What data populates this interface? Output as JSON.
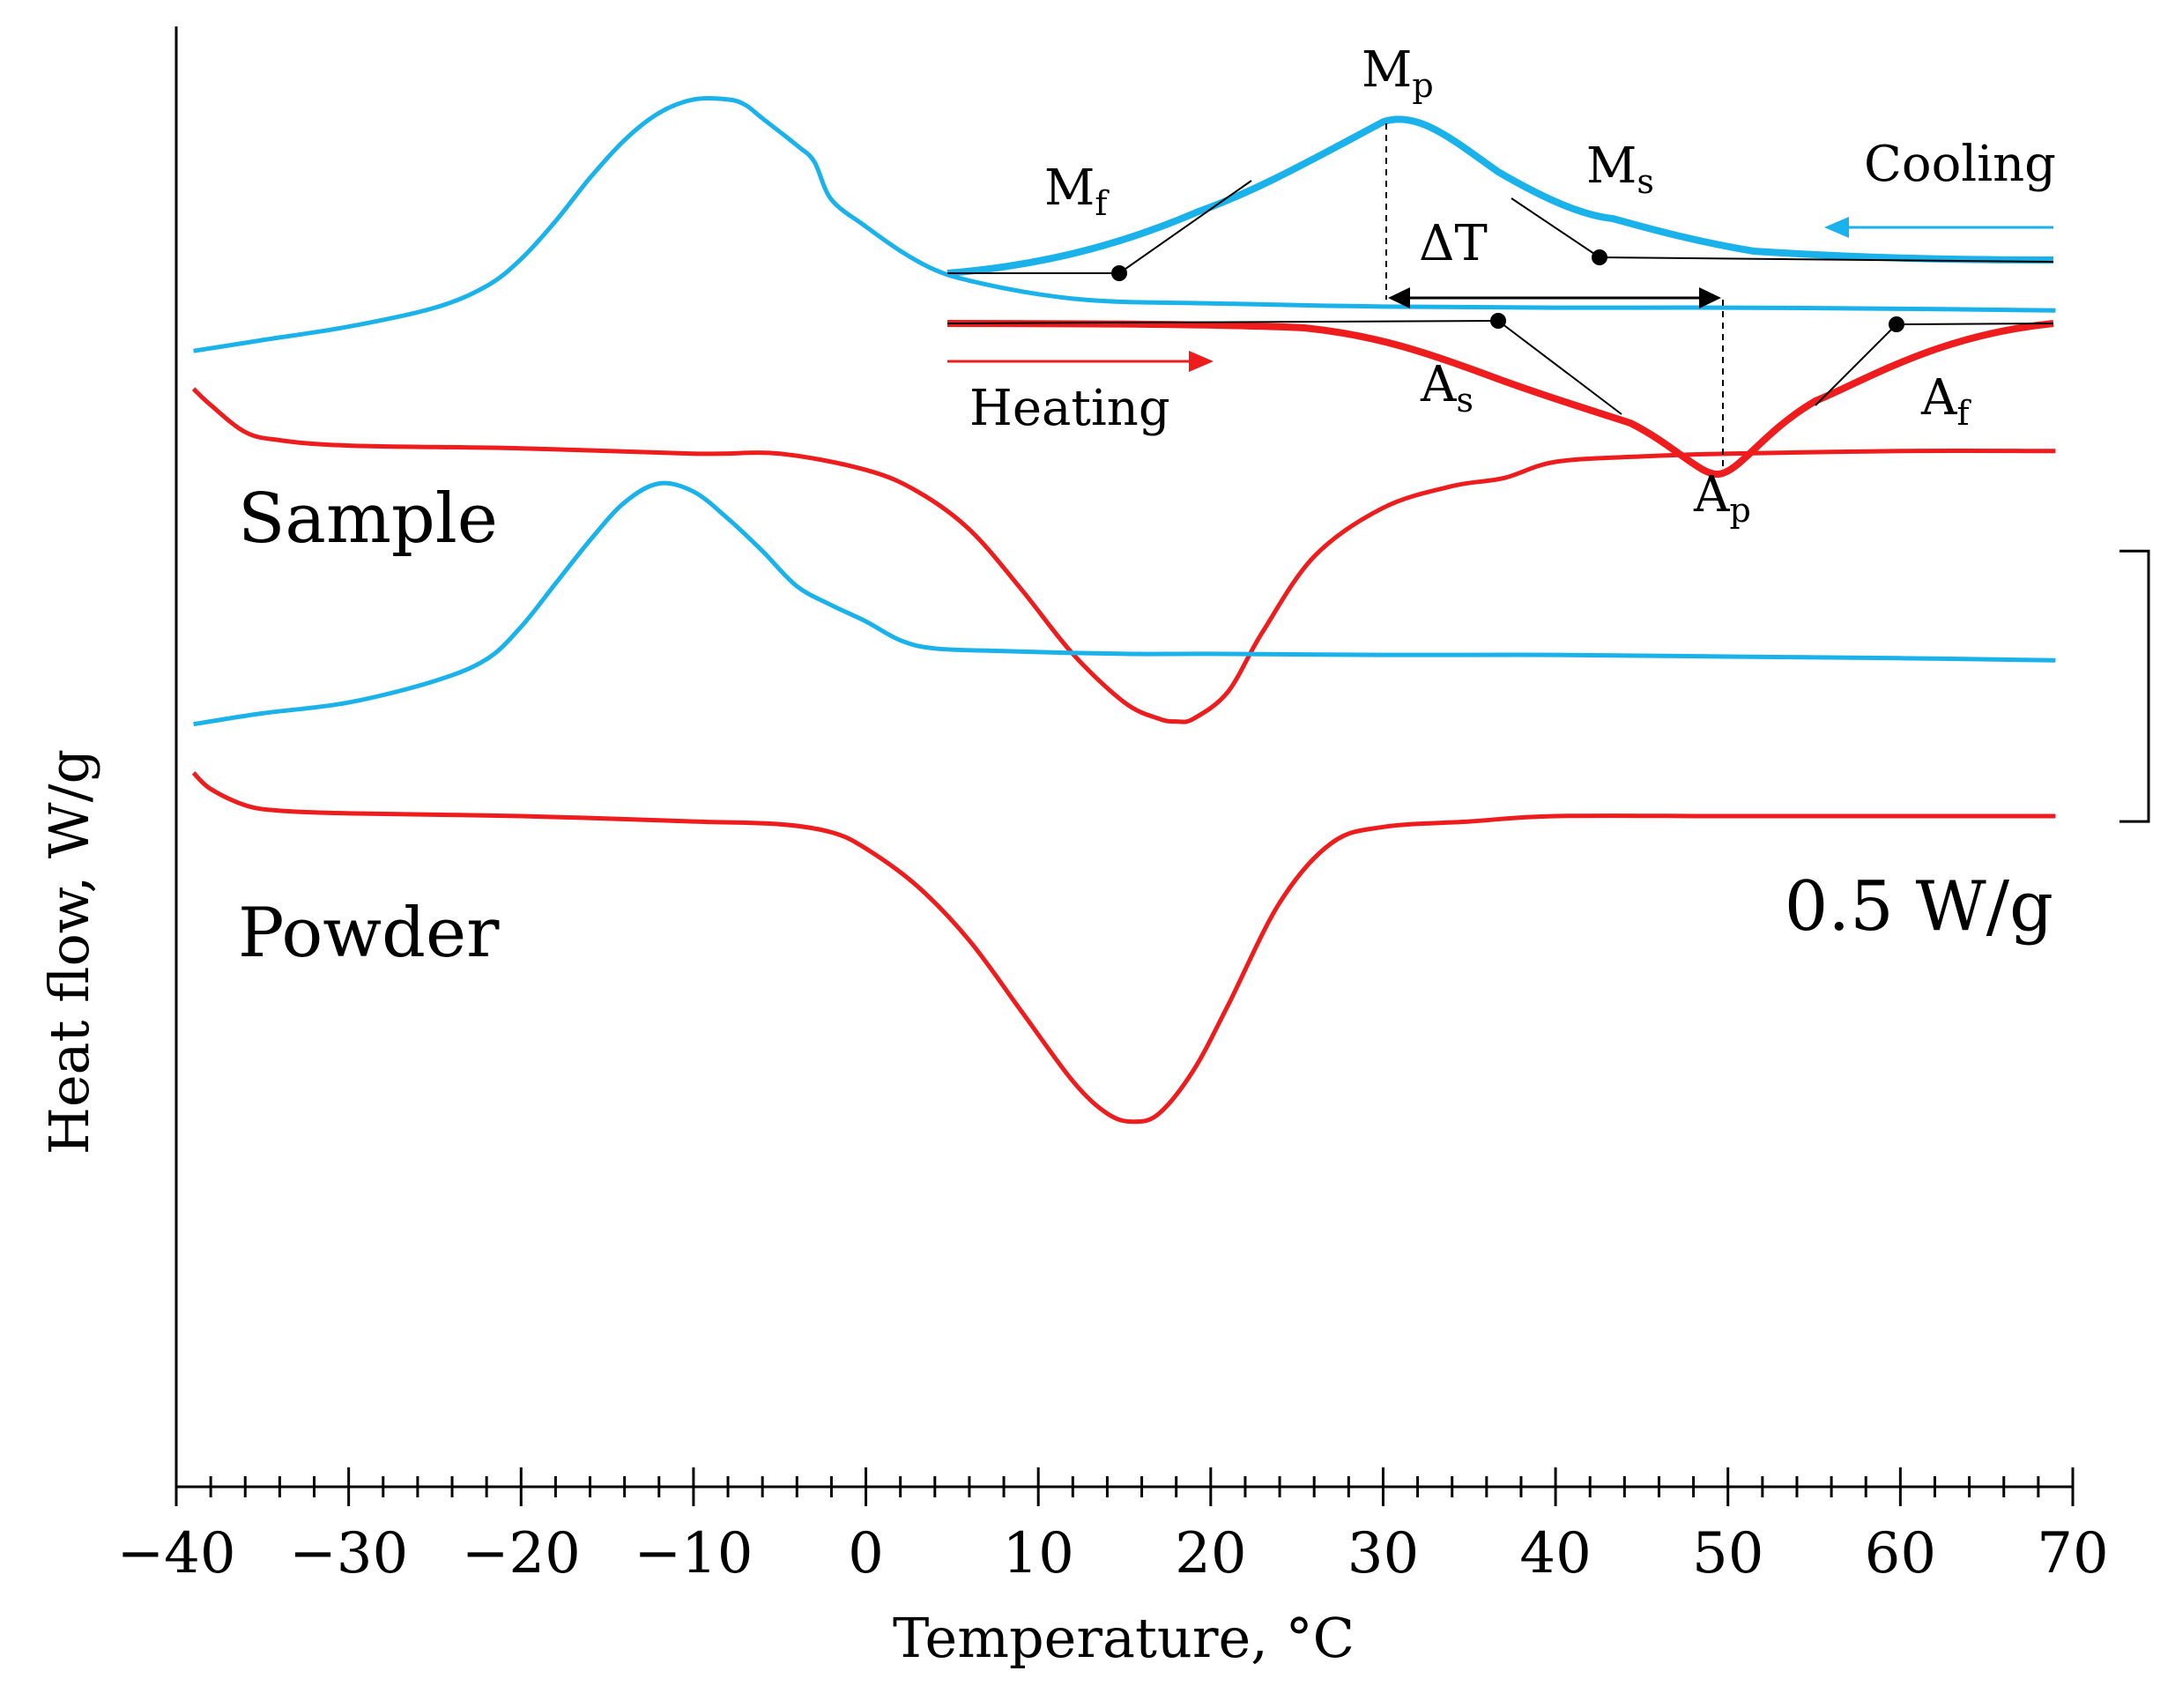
{
  "chart_data": {
    "type": "line",
    "title": "",
    "xlabel": "Temperature, °C",
    "ylabel": "Heat flow, W/g",
    "xlim": [
      -40,
      70
    ],
    "x_ticks": [
      -40,
      -30,
      -20,
      -10,
      0,
      10,
      20,
      30,
      40,
      50,
      60,
      70
    ],
    "x_tick_labels": [
      "−40",
      "−30",
      "−20",
      "−10",
      "0",
      "10",
      "20",
      "30",
      "40",
      "50",
      "60",
      "70"
    ],
    "x_minor_step": 2,
    "ylim": [
      -2.45,
      0.25
    ],
    "y_ticks_shown": false,
    "grid": false,
    "scale_bar": {
      "label": "0.5 W/g",
      "value": 0.5,
      "top": -0.72,
      "bottom": -1.22
    },
    "series": [
      {
        "name": "Sample - cooling",
        "label": "Sample",
        "color": "#1ab2ea",
        "x": [
          -39,
          -35,
          -30,
          -25,
          -22,
          -20,
          -18,
          -16,
          -14,
          -12,
          -10,
          -8,
          -7,
          -6,
          -4,
          -3,
          -2,
          0,
          2,
          4,
          6,
          10,
          14,
          20,
          30,
          40,
          50,
          60,
          69
        ],
        "y": [
          -0.35,
          -0.33,
          -0.305,
          -0.27,
          -0.23,
          -0.18,
          -0.11,
          -0.03,
          0.04,
          0.09,
          0.115,
          0.115,
          0.105,
          0.08,
          0.03,
          0.0,
          -0.07,
          -0.12,
          -0.165,
          -0.2,
          -0.22,
          -0.245,
          -0.258,
          -0.262,
          -0.268,
          -0.27,
          -0.27,
          -0.272,
          -0.275
        ]
      },
      {
        "name": "Sample - heating",
        "color": "#ee1c1c",
        "x": [
          -39,
          -38,
          -36,
          -34,
          -30,
          -20,
          -10,
          -5,
          0,
          3,
          6,
          9,
          12,
          15,
          17,
          18,
          19,
          21,
          23,
          26,
          30,
          34,
          37,
          40,
          45,
          50,
          60,
          69
        ],
        "y": [
          -0.42,
          -0.45,
          -0.5,
          -0.515,
          -0.525,
          -0.53,
          -0.54,
          -0.54,
          -0.57,
          -0.61,
          -0.68,
          -0.79,
          -0.91,
          -1.0,
          -1.03,
          -1.035,
          -1.03,
          -0.98,
          -0.87,
          -0.73,
          -0.64,
          -0.6,
          -0.585,
          -0.555,
          -0.545,
          -0.54,
          -0.535,
          -0.535
        ]
      },
      {
        "name": "Powder - cooling",
        "label": "Powder",
        "color": "#1ab2ea",
        "x": [
          -39,
          -35,
          -30,
          -25,
          -22,
          -20,
          -18,
          -16,
          -14,
          -12,
          -10,
          -8,
          -6,
          -4,
          -2,
          0,
          2,
          4,
          8,
          15,
          20,
          30,
          40,
          50,
          60,
          69
        ],
        "y": [
          -1.04,
          -1.02,
          -1.0,
          -0.96,
          -0.92,
          -0.86,
          -0.78,
          -0.7,
          -0.63,
          -0.595,
          -0.61,
          -0.66,
          -0.72,
          -0.785,
          -0.82,
          -0.85,
          -0.885,
          -0.9,
          -0.905,
          -0.91,
          -0.91,
          -0.912,
          -0.912,
          -0.915,
          -0.918,
          -0.922
        ]
      },
      {
        "name": "Powder - heating",
        "color": "#ee1c1c",
        "x": [
          -39,
          -38,
          -36,
          -34,
          -30,
          -20,
          -10,
          -5,
          -2,
          0,
          3,
          6,
          9,
          12,
          14,
          15.5,
          17,
          19,
          21,
          24,
          27,
          30,
          35,
          40,
          50,
          60,
          69
        ],
        "y": [
          -1.13,
          -1.16,
          -1.19,
          -1.2,
          -1.205,
          -1.21,
          -1.22,
          -1.225,
          -1.24,
          -1.27,
          -1.34,
          -1.44,
          -1.57,
          -1.7,
          -1.76,
          -1.775,
          -1.76,
          -1.68,
          -1.56,
          -1.37,
          -1.26,
          -1.23,
          -1.22,
          -1.21,
          -1.21,
          -1.21,
          -1.21
        ]
      }
    ],
    "legend": "none",
    "annotations": [
      {
        "text": "Sample",
        "type": "curve-label"
      },
      {
        "text": "Powder",
        "type": "curve-label"
      },
      {
        "text": "0.5 W/g",
        "type": "scale-bar"
      }
    ],
    "inset": {
      "description_labels": {
        "cooling": "Cooling",
        "heating": "Heating",
        "delta_t": "ΔT",
        "mp": "M",
        "mp_sub": "p",
        "mf": "M",
        "mf_sub": "f",
        "ms": "M",
        "ms_sub": "s",
        "as": "A",
        "as_sub": "s",
        "af": "A",
        "af_sub": "f",
        "ap": "A",
        "ap_sub": "p"
      },
      "cooling_color": "#1ab2ea",
      "heating_color": "#ee1c1c"
    }
  }
}
